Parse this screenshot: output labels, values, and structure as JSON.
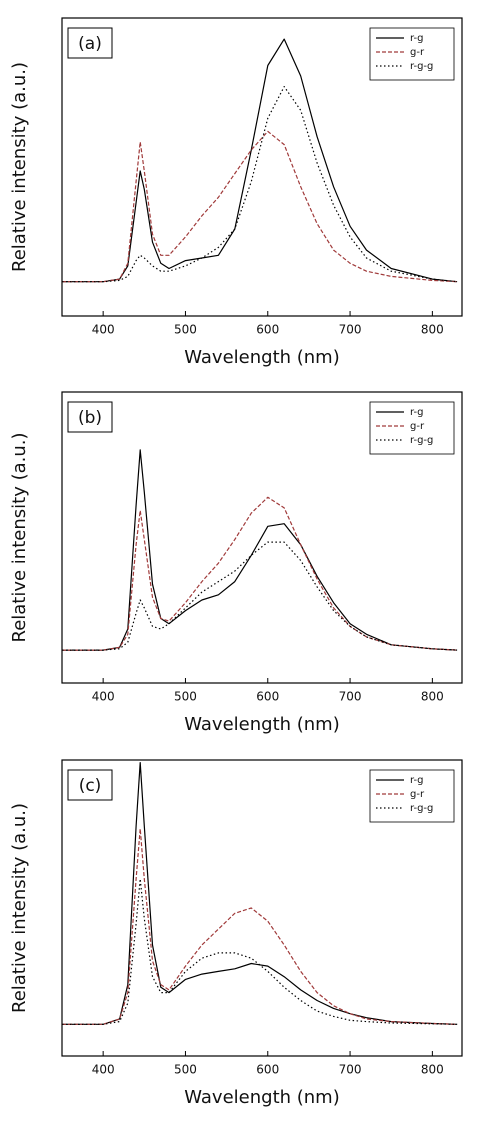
{
  "chart_data": [
    {
      "type": "line",
      "annotation": "(a)",
      "xlabel": "Wavelength (nm)",
      "ylabel": "Relative intensity (a.u.)",
      "x": [
        350,
        400,
        420,
        430,
        440,
        445,
        450,
        460,
        470,
        480,
        500,
        520,
        540,
        560,
        580,
        600,
        620,
        640,
        660,
        680,
        700,
        720,
        750,
        800,
        830
      ],
      "xlim": [
        350,
        836
      ],
      "xticks": [
        400,
        500,
        600,
        700,
        800
      ],
      "ylim": [
        -0.13,
        1.0
      ],
      "legend": "upper right",
      "series": [
        {
          "name": "r-g",
          "color": "#000000",
          "style": "solid",
          "values": [
            0,
            0,
            0.01,
            0.06,
            0.3,
            0.42,
            0.35,
            0.15,
            0.07,
            0.05,
            0.08,
            0.09,
            0.1,
            0.2,
            0.5,
            0.82,
            0.92,
            0.78,
            0.55,
            0.36,
            0.21,
            0.12,
            0.05,
            0.01,
            0
          ]
        },
        {
          "name": "g-r",
          "color": "#a03a3a",
          "style": "dashed",
          "values": [
            0,
            0,
            0.01,
            0.07,
            0.38,
            0.53,
            0.42,
            0.18,
            0.1,
            0.1,
            0.17,
            0.25,
            0.32,
            0.41,
            0.5,
            0.57,
            0.52,
            0.36,
            0.22,
            0.12,
            0.07,
            0.04,
            0.02,
            0.005,
            0
          ]
        },
        {
          "name": "r-g-g",
          "color": "#000000",
          "style": "dotted",
          "values": [
            0,
            0,
            0.005,
            0.02,
            0.08,
            0.1,
            0.09,
            0.06,
            0.04,
            0.04,
            0.06,
            0.09,
            0.13,
            0.2,
            0.38,
            0.62,
            0.74,
            0.65,
            0.45,
            0.29,
            0.17,
            0.09,
            0.04,
            0.01,
            0
          ]
        }
      ]
    },
    {
      "type": "line",
      "annotation": "(b)",
      "xlabel": "Wavelength (nm)",
      "ylabel": "Relative intensity (a.u.)",
      "x": [
        350,
        400,
        420,
        430,
        440,
        445,
        450,
        460,
        470,
        480,
        500,
        520,
        540,
        560,
        580,
        600,
        620,
        640,
        660,
        680,
        700,
        720,
        750,
        800,
        830
      ],
      "xlim": [
        350,
        836
      ],
      "xticks": [
        400,
        500,
        600,
        700,
        800
      ],
      "ylim": [
        -0.125,
        0.98
      ],
      "legend": "upper right",
      "series": [
        {
          "name": "r-g",
          "color": "#000000",
          "style": "solid",
          "values": [
            0,
            0,
            0.01,
            0.08,
            0.55,
            0.76,
            0.6,
            0.25,
            0.12,
            0.1,
            0.15,
            0.19,
            0.21,
            0.26,
            0.36,
            0.47,
            0.48,
            0.4,
            0.28,
            0.18,
            0.1,
            0.06,
            0.02,
            0.005,
            0
          ]
        },
        {
          "name": "g-r",
          "color": "#a03a3a",
          "style": "dashed",
          "values": [
            0,
            0,
            0.01,
            0.06,
            0.4,
            0.53,
            0.42,
            0.2,
            0.12,
            0.11,
            0.18,
            0.26,
            0.33,
            0.42,
            0.52,
            0.58,
            0.54,
            0.4,
            0.27,
            0.16,
            0.09,
            0.05,
            0.02,
            0.005,
            0
          ]
        },
        {
          "name": "r-g-g",
          "color": "#000000",
          "style": "dotted",
          "values": [
            0,
            0,
            0.005,
            0.03,
            0.14,
            0.19,
            0.16,
            0.09,
            0.08,
            0.1,
            0.16,
            0.22,
            0.26,
            0.3,
            0.36,
            0.41,
            0.41,
            0.34,
            0.24,
            0.15,
            0.09,
            0.05,
            0.02,
            0.005,
            0
          ]
        }
      ]
    },
    {
      "type": "line",
      "annotation": "(c)",
      "xlabel": "Wavelength (nm)",
      "ylabel": "Relative intensity (a.u.)",
      "x": [
        350,
        400,
        420,
        430,
        440,
        445,
        450,
        460,
        470,
        480,
        500,
        520,
        540,
        560,
        580,
        600,
        620,
        640,
        660,
        680,
        700,
        720,
        750,
        800,
        830
      ],
      "xlim": [
        350,
        836
      ],
      "xticks": [
        400,
        500,
        600,
        700,
        800
      ],
      "ylim": [
        -0.12,
        1.0
      ],
      "legend": "upper right",
      "series": [
        {
          "name": "r-g",
          "color": "#000000",
          "style": "solid",
          "values": [
            0,
            0,
            0.02,
            0.15,
            0.75,
            0.99,
            0.75,
            0.3,
            0.14,
            0.12,
            0.17,
            0.19,
            0.2,
            0.21,
            0.23,
            0.22,
            0.18,
            0.13,
            0.09,
            0.06,
            0.04,
            0.025,
            0.01,
            0.003,
            0
          ]
        },
        {
          "name": "g-r",
          "color": "#a03a3a",
          "style": "dashed",
          "values": [
            0,
            0,
            0.02,
            0.12,
            0.55,
            0.74,
            0.55,
            0.24,
            0.15,
            0.13,
            0.22,
            0.3,
            0.36,
            0.42,
            0.44,
            0.39,
            0.3,
            0.2,
            0.12,
            0.07,
            0.04,
            0.02,
            0.01,
            0.003,
            0
          ]
        },
        {
          "name": "r-g-g",
          "color": "#000000",
          "style": "dotted",
          "values": [
            0,
            0,
            0.01,
            0.08,
            0.38,
            0.55,
            0.4,
            0.18,
            0.12,
            0.12,
            0.2,
            0.25,
            0.27,
            0.27,
            0.25,
            0.2,
            0.14,
            0.09,
            0.05,
            0.03,
            0.015,
            0.01,
            0.005,
            0.002,
            0
          ]
        }
      ]
    }
  ]
}
